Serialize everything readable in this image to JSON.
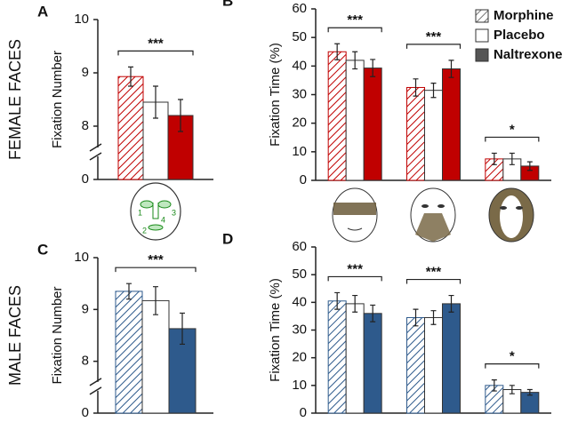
{
  "face_regions": [
    "1",
    "2",
    "3",
    "4"
  ],
  "chart_data": [
    {
      "type": "bar",
      "panel": "A",
      "row_label": "FEMALE FACES",
      "ylabel": "Fixation Number",
      "categories": [
        null
      ],
      "ylim": [
        0,
        10
      ],
      "yticks": [
        0,
        8,
        9,
        10
      ],
      "axis_break": [
        0,
        7
      ],
      "series": [
        {
          "name": "Morphine",
          "color": "#c00000",
          "pattern": "hatch",
          "values": [
            8.93
          ],
          "errors": [
            0.18
          ]
        },
        {
          "name": "Placebo",
          "color": "#ffffff",
          "values": [
            8.45
          ],
          "errors": [
            0.3
          ]
        },
        {
          "name": "Naltrexone",
          "color": "#c00000",
          "values": [
            8.2
          ],
          "errors": [
            0.3
          ]
        }
      ],
      "annotations": [
        {
          "text": "***",
          "group": 0
        }
      ]
    },
    {
      "type": "bar",
      "panel": "B",
      "ylabel": "Fixation Time (%)",
      "categories": [
        null,
        null,
        null
      ],
      "ylim": [
        0,
        60
      ],
      "yticks": [
        0,
        10,
        20,
        30,
        40,
        50,
        60
      ],
      "legend": "upper right",
      "legend_colors": [
        "#777777",
        "#ffffff",
        "#555555"
      ],
      "series": [
        {
          "name": "Morphine",
          "color": "#c00000",
          "pattern": "hatch",
          "values": [
            45,
            32.5,
            7.5
          ],
          "errors": [
            2.8,
            3,
            2
          ]
        },
        {
          "name": "Placebo",
          "color": "#ffffff",
          "values": [
            42,
            31.5,
            7.5
          ],
          "errors": [
            3,
            2.5,
            2
          ]
        },
        {
          "name": "Naltrexone",
          "color": "#c00000",
          "values": [
            39.3,
            39,
            5
          ],
          "errors": [
            3,
            3,
            1.5
          ]
        }
      ],
      "annotations": [
        {
          "text": "***",
          "group": 0
        },
        {
          "text": "***",
          "group": 1
        },
        {
          "text": "*",
          "group": 2
        }
      ]
    },
    {
      "type": "bar",
      "panel": "C",
      "row_label": "MALE FACES",
      "ylabel": "Fixation Number",
      "categories": [
        null
      ],
      "ylim": [
        0,
        10
      ],
      "yticks": [
        0,
        8,
        9,
        10
      ],
      "axis_break": [
        0,
        7
      ],
      "series": [
        {
          "name": "Morphine",
          "color": "#2e5a8c",
          "pattern": "hatch",
          "values": [
            9.35
          ],
          "errors": [
            0.15
          ]
        },
        {
          "name": "Placebo",
          "color": "#ffffff",
          "values": [
            9.17
          ],
          "errors": [
            0.27
          ]
        },
        {
          "name": "Naltrexone",
          "color": "#2e5a8c",
          "values": [
            8.63
          ],
          "errors": [
            0.3
          ]
        }
      ],
      "annotations": [
        {
          "text": "***",
          "group": 0
        }
      ]
    },
    {
      "type": "bar",
      "panel": "D",
      "ylabel": "Fixation Time (%)",
      "categories": [
        null,
        null,
        null
      ],
      "ylim": [
        0,
        60
      ],
      "yticks": [
        0,
        10,
        20,
        30,
        40,
        50,
        60
      ],
      "series": [
        {
          "name": "Morphine",
          "color": "#2e5a8c",
          "pattern": "hatch",
          "values": [
            40.5,
            34.5,
            10
          ],
          "errors": [
            3,
            3,
            2
          ]
        },
        {
          "name": "Placebo",
          "color": "#ffffff",
          "values": [
            39.5,
            34.5,
            8.5
          ],
          "errors": [
            3,
            2.5,
            1.5
          ]
        },
        {
          "name": "Naltrexone",
          "color": "#2e5a8c",
          "values": [
            36,
            39.5,
            7.5
          ],
          "errors": [
            3,
            3,
            1
          ]
        }
      ],
      "annotations": [
        {
          "text": "***",
          "group": 0
        },
        {
          "text": "***",
          "group": 1
        },
        {
          "text": "*",
          "group": 2
        }
      ]
    }
  ]
}
